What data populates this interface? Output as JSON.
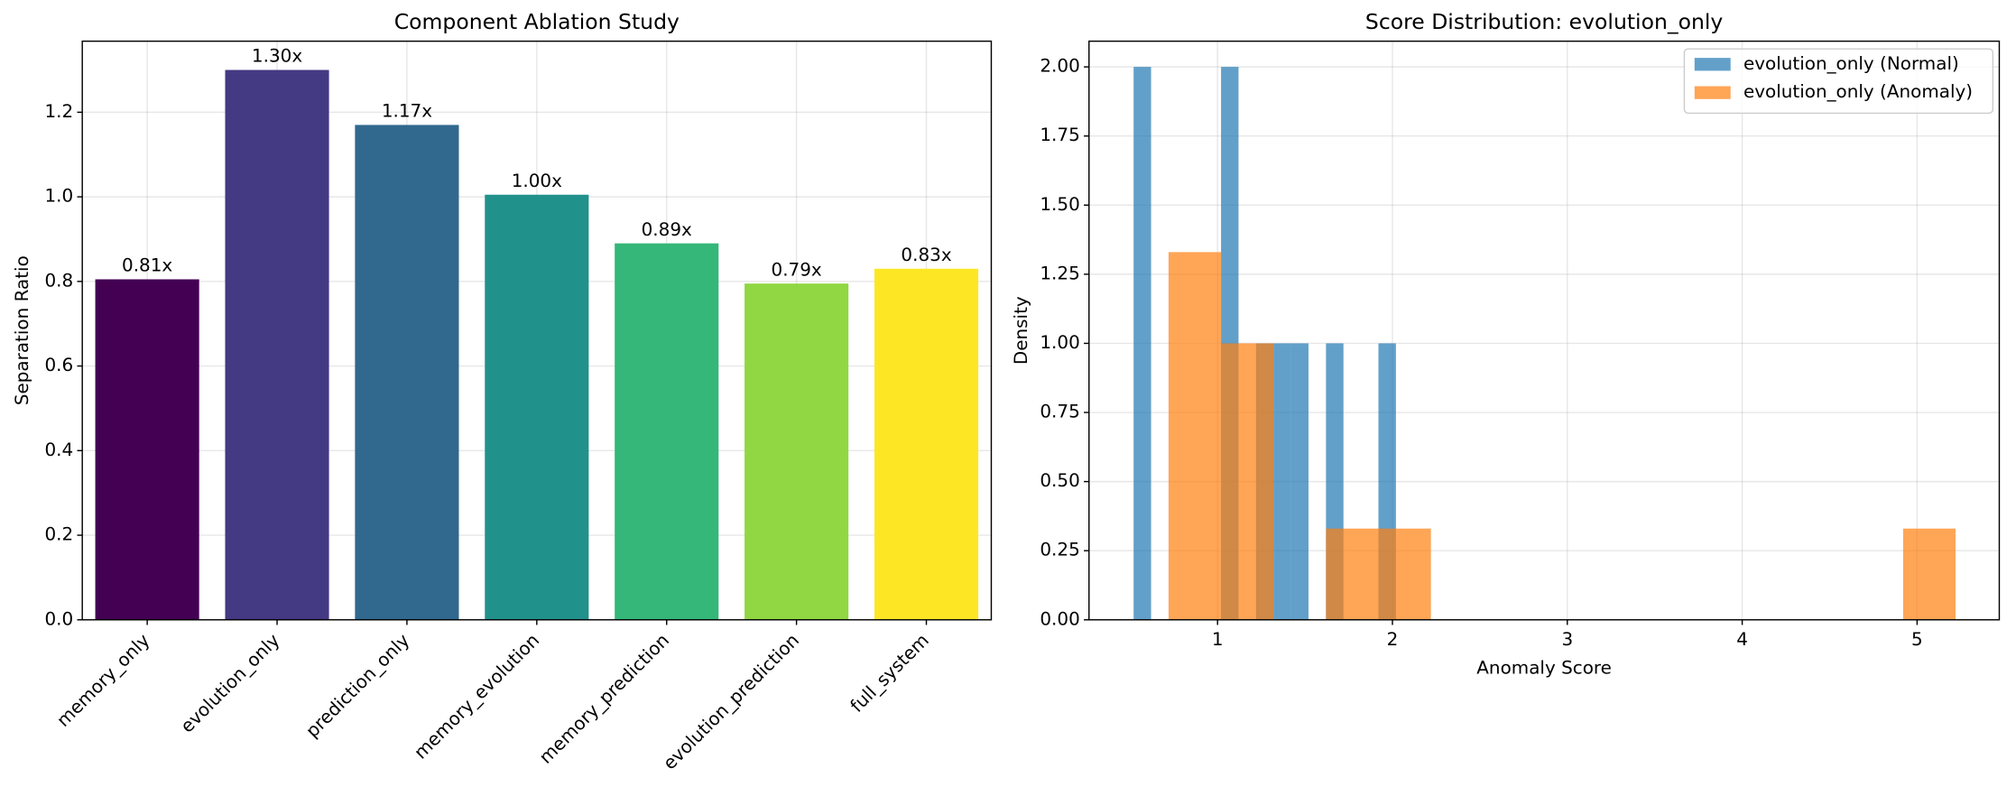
{
  "chart_data": [
    {
      "type": "bar",
      "title": "Component Ablation Study",
      "ylabel": "Separation Ratio",
      "categories": [
        "memory_only",
        "evolution_only",
        "prediction_only",
        "memory_evolution",
        "memory_prediction",
        "evolution_prediction",
        "full_system"
      ],
      "values": [
        0.805,
        1.3,
        1.17,
        1.005,
        0.89,
        0.795,
        0.83
      ],
      "value_labels": [
        "0.81x",
        "1.30x",
        "1.17x",
        "1.00x",
        "0.89x",
        "0.79x",
        "0.83x"
      ],
      "colors": [
        "#440154",
        "#443983",
        "#31688e",
        "#21918c",
        "#35b779",
        "#90d743",
        "#fde725"
      ],
      "ylim": [
        0,
        1.368
      ],
      "yticks": [
        {
          "value": 0,
          "label": "0.0"
        },
        0.2,
        0.4,
        0.6,
        0.8,
        {
          "value": 1,
          "label": "1.0"
        },
        1.2
      ],
      "grid": true
    },
    {
      "type": "histogram",
      "title": "Score Distribution: evolution_only",
      "xlabel": "Anomaly Score",
      "ylabel": "Density",
      "series": [
        {
          "name": "evolution_only (Normal)",
          "color": "#1f77b4",
          "bins": [
            0.52,
            0.62,
            0.72,
            0.82,
            0.92,
            1.02,
            1.12,
            1.22,
            1.32,
            1.42,
            1.52,
            1.62,
            1.72,
            1.82,
            1.92,
            2.02
          ],
          "values": [
            2,
            0,
            0,
            0,
            0,
            2,
            0,
            1,
            1,
            1,
            0,
            1,
            0,
            0,
            1
          ]
        },
        {
          "name": "evolution_only (Anomaly)",
          "color": "#ff7f0e",
          "bins": [
            0.72,
            1.02,
            1.32,
            1.62,
            1.92,
            2.22,
            2.52,
            2.82,
            3.12,
            3.42,
            3.72,
            4.02,
            4.32,
            4.62,
            4.92,
            5.22
          ],
          "values": [
            1.33,
            1.0,
            0,
            0.33,
            0.33,
            0,
            0,
            0,
            0,
            0,
            0,
            0,
            0,
            0,
            0.33
          ]
        }
      ],
      "xlim": [
        0.265,
        5.47
      ],
      "xticks": [
        1,
        2,
        3,
        4,
        5
      ],
      "ylim": [
        0,
        2.093
      ],
      "yticks": [
        {
          "value": 0,
          "label": "0.00"
        },
        {
          "value": 0.25,
          "label": "0.25"
        },
        {
          "value": 0.5,
          "label": "0.50"
        },
        {
          "value": 0.75,
          "label": "0.75"
        },
        {
          "value": 1,
          "label": "1.00"
        },
        {
          "value": 1.25,
          "label": "1.25"
        },
        {
          "value": 1.5,
          "label": "1.50"
        },
        {
          "value": 1.75,
          "label": "1.75"
        },
        {
          "value": 2,
          "label": "2.00"
        }
      ],
      "grid": true,
      "legend": "upper right"
    }
  ]
}
